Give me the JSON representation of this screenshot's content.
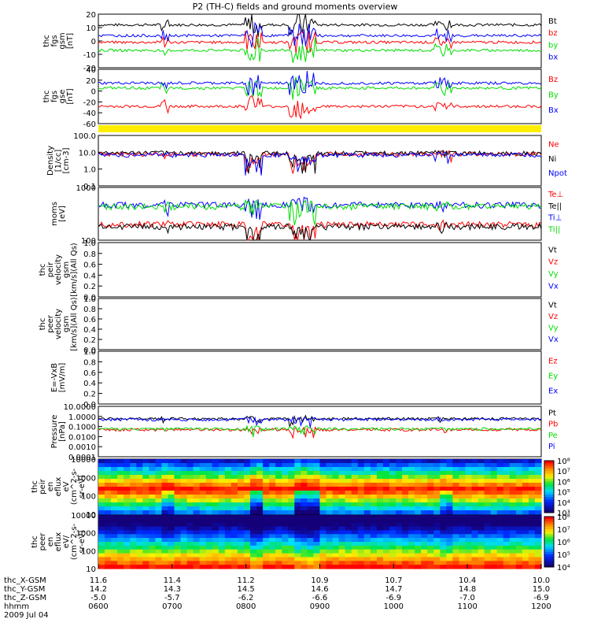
{
  "title": "P2 (TH-C) fields and ground moments overview",
  "chart_data": [
    {
      "type": "line",
      "panel": "fgs_gsm",
      "ylabel": [
        "thc",
        "fgs",
        "gsm",
        "[nT]"
      ],
      "ylim": [
        -20,
        20
      ],
      "ticks": [
        "20",
        "10",
        "0",
        "-10",
        "-20"
      ],
      "series": [
        {
          "name": "Bt",
          "color": "#000000",
          "level": 12
        },
        {
          "name": "bz",
          "color": "#ff0000",
          "level": -1
        },
        {
          "name": "by",
          "color": "#00dd00",
          "level": -7
        },
        {
          "name": "bx",
          "color": "#0000ff",
          "level": 4
        }
      ]
    },
    {
      "type": "line",
      "panel": "fgs_gse",
      "ylabel": [
        "thc",
        "fgs",
        "gse",
        "[nT]"
      ],
      "ylim": [
        -70,
        40
      ],
      "ticks": [
        "40",
        "20",
        "0",
        "-20",
        "-40",
        "-60"
      ],
      "series": [
        {
          "name": "Bz",
          "color": "#ff0000",
          "level": -35
        },
        {
          "name": "By",
          "color": "#00dd00",
          "level": 2
        },
        {
          "name": "Bx",
          "color": "#0000ff",
          "level": 12
        }
      ]
    },
    {
      "type": "line",
      "panel": "density",
      "ylabel": [
        "Density",
        "[1/cc]",
        "[cm-3]"
      ],
      "ylim": [
        0.1,
        100
      ],
      "log": true,
      "ticks": [
        "100.0",
        "10.0",
        "1.0",
        "0.1"
      ],
      "series": [
        {
          "name": "Ne",
          "color": "#ff0000",
          "level": 8
        },
        {
          "name": "Ni",
          "color": "#000000",
          "level": 9
        },
        {
          "name": "Npot",
          "color": "#0000ff",
          "level": 7
        }
      ]
    },
    {
      "type": "line",
      "panel": "temperature",
      "ylabel": [
        "moms",
        "[eV]"
      ],
      "ylim": [
        10,
        2000
      ],
      "log": true,
      "ticks": [
        "1000",
        "100"
      ],
      "series": [
        {
          "name": "Te⊥",
          "color": "#ff0000",
          "level": 50
        },
        {
          "name": "Te||",
          "color": "#000000",
          "level": 40
        },
        {
          "name": "Ti⊥",
          "color": "#0000ff",
          "level": 350
        },
        {
          "name": "Ti||",
          "color": "#00dd00",
          "level": 300
        }
      ]
    },
    {
      "type": "line",
      "panel": "peir_velocity",
      "ylabel": [
        "thc",
        "peir",
        "velocity",
        "gsm",
        "[km/s](All Qs)"
      ],
      "ylim": [
        0,
        1
      ],
      "ticks": [
        "1.0",
        "0.8",
        "0.6",
        "0.4",
        "0.2",
        "0.0"
      ],
      "series": [
        {
          "name": "Vt",
          "color": "#000000"
        },
        {
          "name": "Vz",
          "color": "#ff0000"
        },
        {
          "name": "Vy",
          "color": "#00dd00"
        },
        {
          "name": "Vx",
          "color": "#0000ff"
        }
      ]
    },
    {
      "type": "line",
      "panel": "peer_velocity",
      "ylabel": [
        "thc",
        "peer",
        "velocity",
        "gsm",
        "[km/s](All Qs)"
      ],
      "ylim": [
        0,
        1
      ],
      "ticks": [
        "1.0",
        "0.8",
        "0.6",
        "0.4",
        "0.2",
        "0.0"
      ],
      "series": [
        {
          "name": "Vt",
          "color": "#000000"
        },
        {
          "name": "Vz",
          "color": "#ff0000"
        },
        {
          "name": "Vy",
          "color": "#00dd00"
        },
        {
          "name": "Vx",
          "color": "#0000ff"
        }
      ]
    },
    {
      "type": "line",
      "panel": "efield",
      "ylabel": [
        "E=-VxB",
        "[mV/m]"
      ],
      "ylim": [
        0,
        1
      ],
      "ticks": [
        "1.0",
        "0.8",
        "0.6",
        "0.4",
        "0.2",
        "0.0"
      ],
      "series": [
        {
          "name": "Ez",
          "color": "#ff0000"
        },
        {
          "name": "Ey",
          "color": "#00dd00"
        },
        {
          "name": "Ex",
          "color": "#0000ff"
        }
      ]
    },
    {
      "type": "line",
      "panel": "pressure",
      "ylabel": [
        "Pressure",
        "[nPa]"
      ],
      "ylim": [
        0.0001,
        10
      ],
      "log": true,
      "ticks": [
        "10.0000",
        "1.0000",
        "0.1000",
        "0.0100",
        "0.0010",
        "0.0001"
      ],
      "series": [
        {
          "name": "Pt",
          "color": "#000000",
          "level": 0.6
        },
        {
          "name": "Pb",
          "color": "#ff0000",
          "level": 0.05
        },
        {
          "name": "Pe",
          "color": "#00dd00",
          "level": 0.06
        },
        {
          "name": "Pi",
          "color": "#0000ff",
          "level": 0.5
        }
      ]
    },
    {
      "type": "heatmap",
      "panel": "peir_spectrogram",
      "ylabel": [
        "thc",
        "peir",
        "en",
        "eflux",
        "eV",
        "(cm^2-s-",
        "sr-eV)"
      ],
      "ylim": [
        10,
        10000
      ],
      "log": true,
      "ticks": [
        "10000",
        "1000",
        "100",
        "10"
      ],
      "colorbar_ticks": [
        "10⁸",
        "10⁷",
        "10⁶",
        "10⁵",
        "10⁴",
        "10³"
      ]
    },
    {
      "type": "heatmap",
      "panel": "peer_spectrogram",
      "ylabel": [
        "thc",
        "peer",
        "en",
        "eflux",
        "eV/",
        "(cm^2-s-",
        "sr-eV)"
      ],
      "ylim": [
        10,
        10000
      ],
      "log": true,
      "ticks": [
        "10000",
        "1000",
        "100",
        "10"
      ],
      "colorbar_ticks": [
        "10⁸",
        "10⁷",
        "10⁶",
        "10⁵",
        "10⁴"
      ]
    }
  ],
  "time_axis": {
    "rows": [
      {
        "label": "thc_X-GSM",
        "values": [
          "11.6",
          "11.4",
          "11.2",
          "10.9",
          "10.7",
          "10.4",
          "10.0"
        ]
      },
      {
        "label": "thc_Y-GSM",
        "values": [
          "14.2",
          "14.3",
          "14.5",
          "14.6",
          "14.7",
          "14.8",
          "15.0"
        ]
      },
      {
        "label": "thc_Z-GSM",
        "values": [
          "-5.0",
          "-5.7",
          "-6.2",
          "-6.6",
          "-6.9",
          "-7.0",
          "-6.9"
        ]
      },
      {
        "label": "hhmm",
        "values": [
          "0600",
          "0700",
          "0800",
          "0900",
          "1000",
          "1100",
          "1200"
        ]
      }
    ],
    "date": "2009 Jul 04"
  }
}
